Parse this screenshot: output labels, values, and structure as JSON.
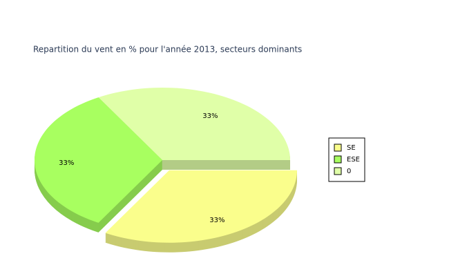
{
  "chart_data": {
    "type": "pie3d",
    "title": "Repartition du vent en % pour l'année 2013, secteurs dominants",
    "categories": [
      "SE",
      "ESE",
      "0"
    ],
    "values": [
      33,
      33,
      33
    ],
    "value_labels": [
      "33%",
      "33%",
      "33%"
    ],
    "colors": [
      "#fafe8c",
      "#a8ff60",
      "#e0ffa8"
    ],
    "exploded": "SE",
    "legend": "right"
  }
}
